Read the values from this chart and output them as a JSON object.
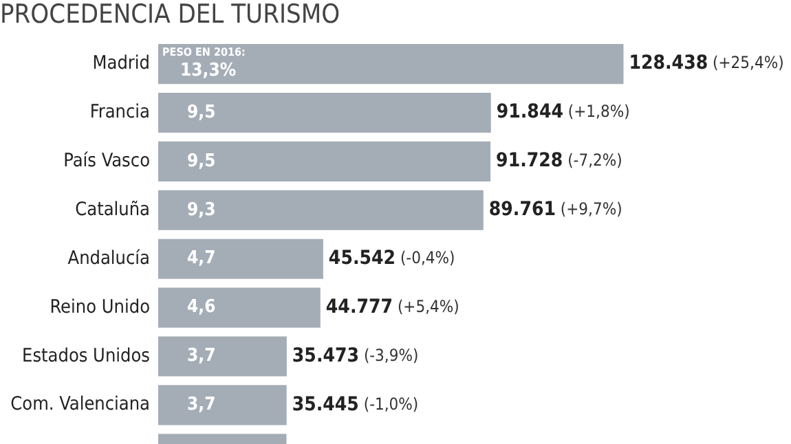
{
  "chart_data": {
    "type": "bar",
    "orientation": "horizontal",
    "title": "PROCEDENCIA DEL TURISMO",
    "categories": [
      "Madrid",
      "Francia",
      "País Vasco",
      "Cataluña",
      "Andalucía",
      "Reino Unido",
      "Estados Unidos",
      "Com. Valenciana",
      null
    ],
    "values": [
      128438,
      91844,
      91728,
      89761,
      45542,
      44777,
      35473,
      35445,
      35400
    ],
    "color": "#a4adb6",
    "value_labels": [
      "128.438 (+25,4%)",
      "91.844 (+1,8%)",
      "91.728 (-7,2%)",
      "89.761 (+9,7%)",
      "45.542 (-0,4%)",
      "44.777 (+5,4%)",
      "35.473 (-3,9%)",
      "35.445 (-1,0%)",
      null
    ],
    "annotations": [
      {
        "text": "PESO EN 2016:",
        "y": "Madrid"
      },
      {
        "text": "13,3%",
        "y": "Madrid"
      },
      {
        "text": "9,5",
        "y": "Francia"
      },
      {
        "text": "9,5",
        "y": "País Vasco"
      },
      {
        "text": "9,3",
        "y": "Cataluña"
      },
      {
        "text": "4,7",
        "y": "Andalucía"
      },
      {
        "text": "4,6",
        "y": "Reino Unido"
      },
      {
        "text": "3,7",
        "y": "Estados Unidos"
      },
      {
        "text": "3,7",
        "y": "Com. Valenciana"
      }
    ],
    "grid": false,
    "legend": false
  }
}
